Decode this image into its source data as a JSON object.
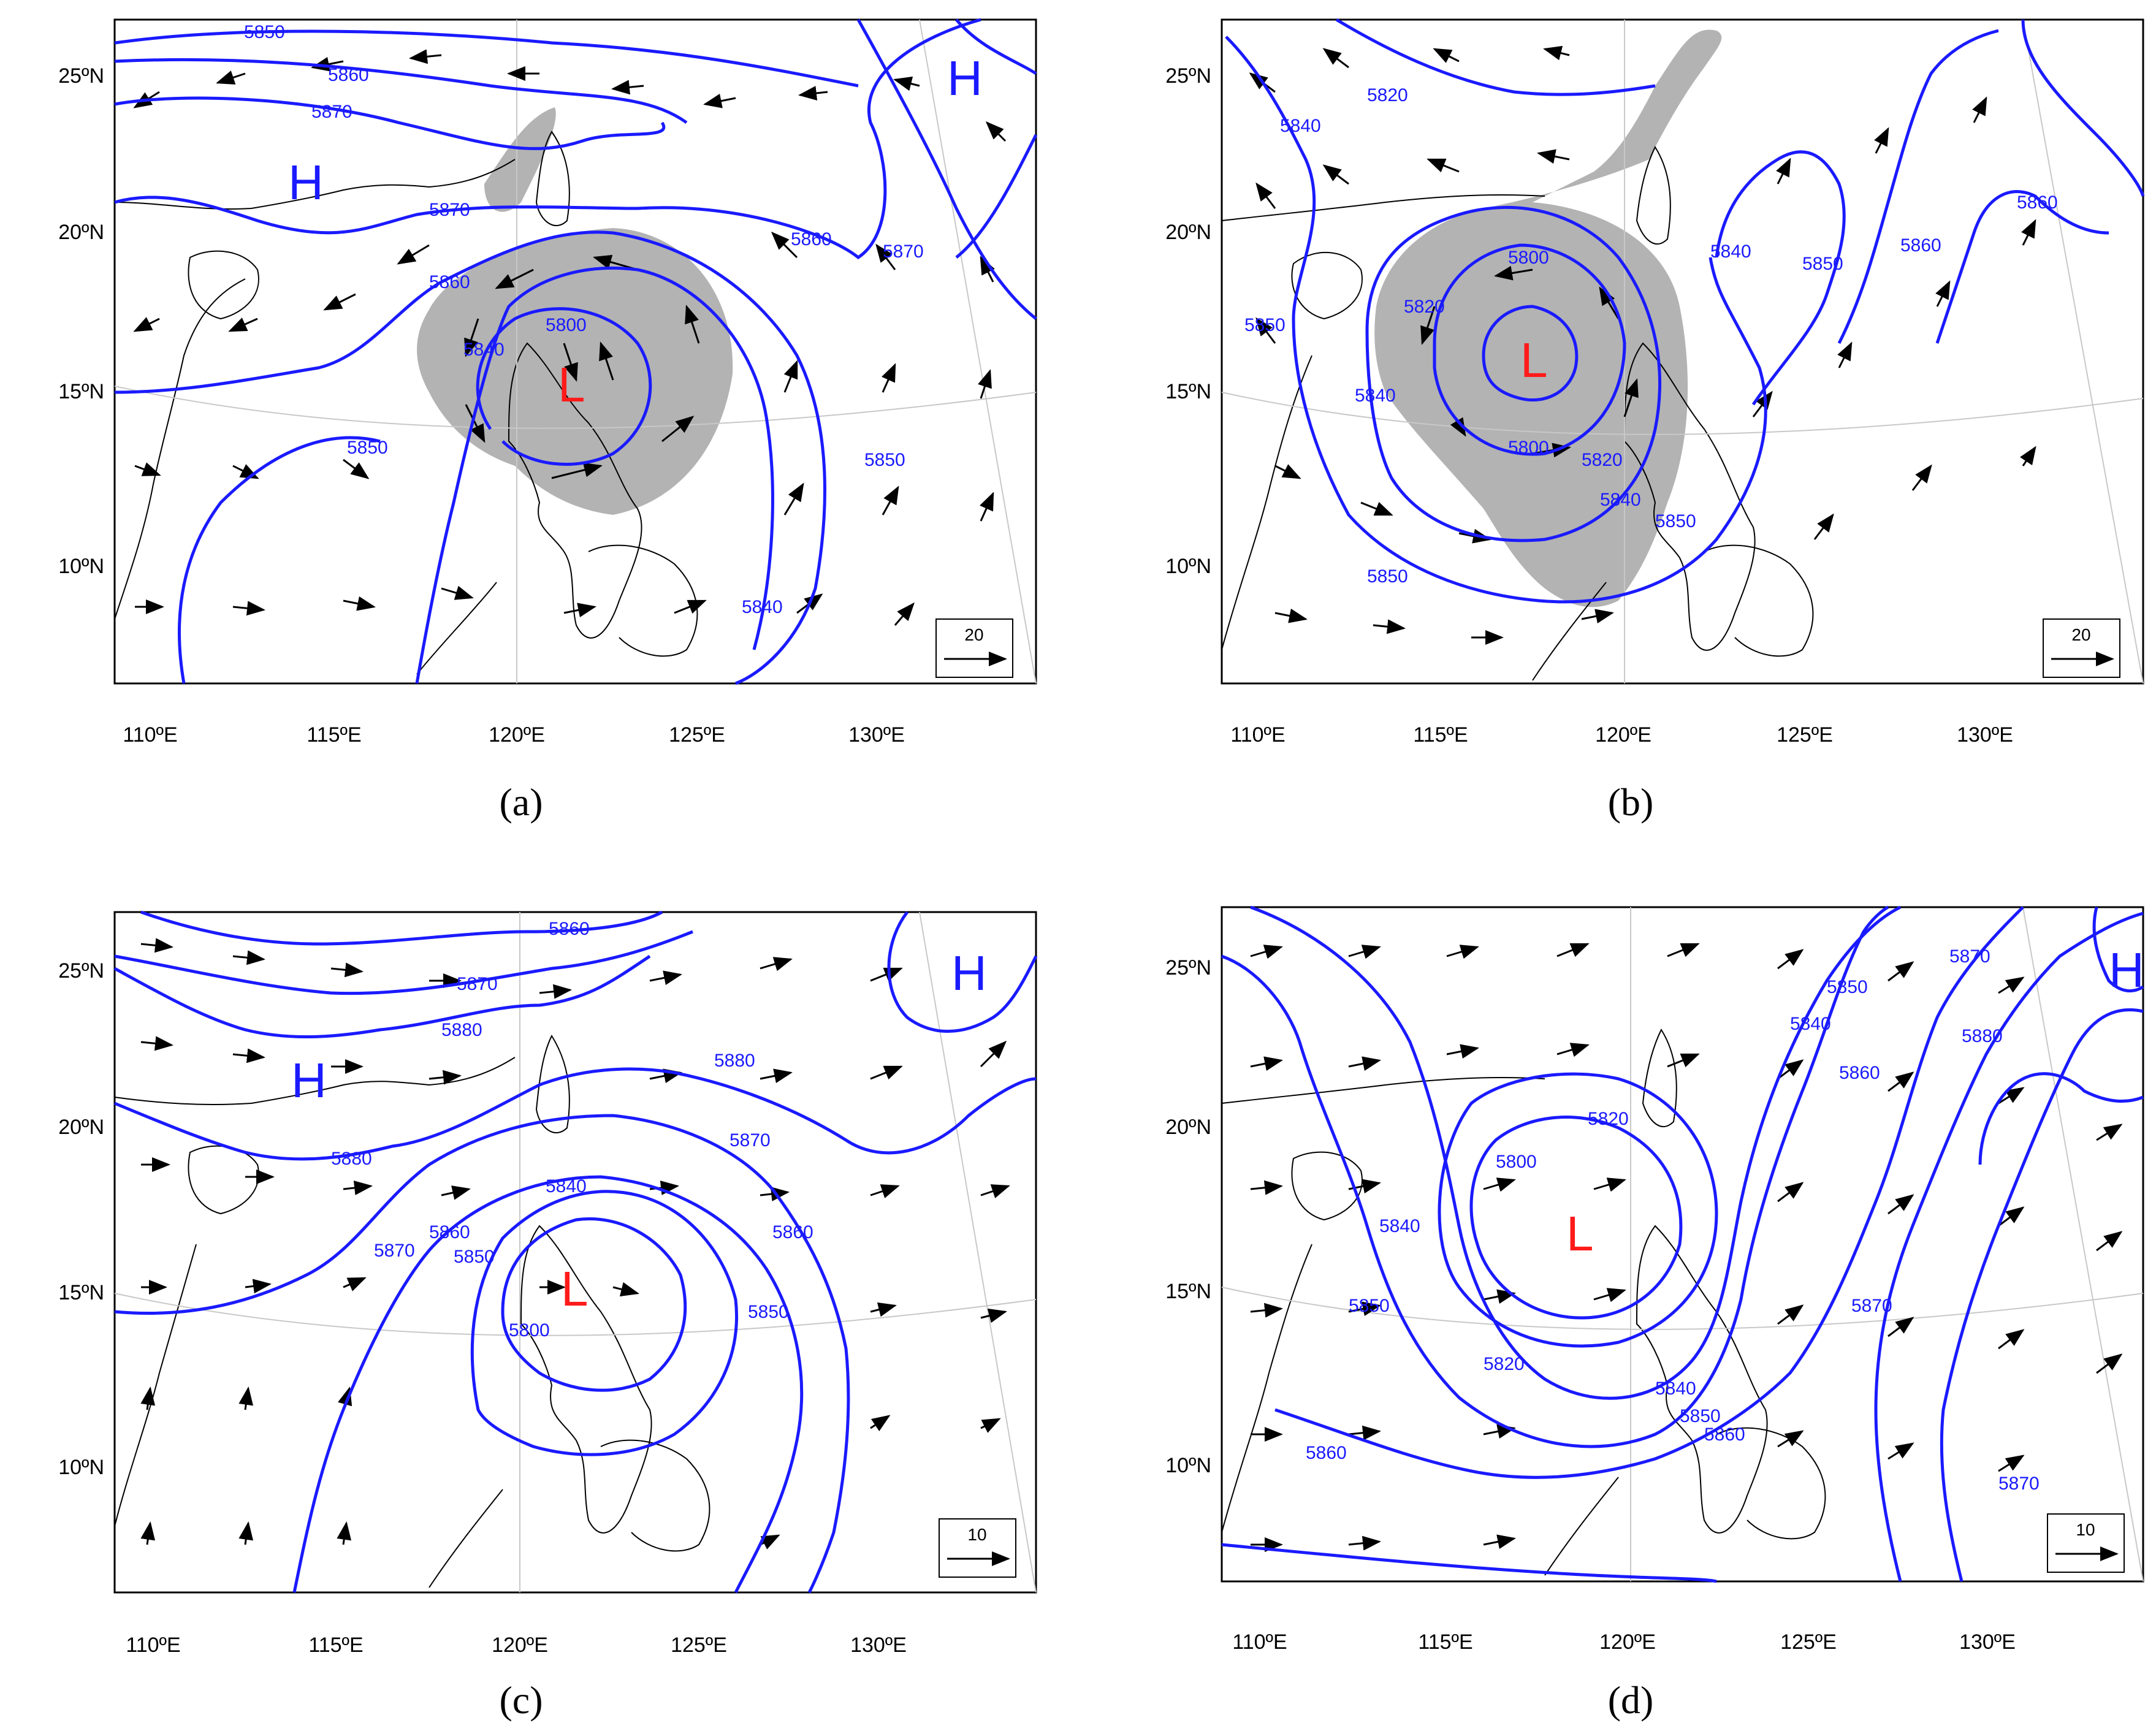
{
  "figure": {
    "lat_ticks": [
      "25ºN",
      "20ºN",
      "15ºN",
      "10ºN"
    ],
    "lon_ticks": [
      "110ºE",
      "115ºE",
      "120ºE",
      "125ºE",
      "130ºE"
    ],
    "colors": {
      "contour": "#1a1aff",
      "low": "#ff1a1a",
      "high": "#1a1aff",
      "shade": "#b3b3b3",
      "arrow": "#000000",
      "coast": "#000000"
    }
  },
  "panels": [
    {
      "id": "a",
      "label": "(a)",
      "ref_vector": "20",
      "centers": [
        {
          "type": "L",
          "lon": 121.8,
          "lat": 15.4
        },
        {
          "type": "H",
          "lon": 113.8,
          "lat": 21.5
        },
        {
          "type": "H",
          "lon": 132.5,
          "lat": 24.8
        }
      ],
      "contour_labels": [
        "5850",
        "5860",
        "5870",
        "5870",
        "5860",
        "5850",
        "5840",
        "5800",
        "5860",
        "5870",
        "5850",
        "5840"
      ]
    },
    {
      "id": "b",
      "label": "(b)",
      "ref_vector": "20",
      "centers": [
        {
          "type": "L",
          "lon": 118.0,
          "lat": 15.9
        }
      ],
      "contour_labels": [
        "5820",
        "5840",
        "5800",
        "5820",
        "5840",
        "5850",
        "5800",
        "5820",
        "5840",
        "5850",
        "5850",
        "5840",
        "5850",
        "5860",
        "5860"
      ]
    },
    {
      "id": "c",
      "label": "(c)",
      "ref_vector": "10",
      "centers": [
        {
          "type": "L",
          "lon": 121.8,
          "lat": 15.2
        },
        {
          "type": "H",
          "lon": 114.0,
          "lat": 21.3
        },
        {
          "type": "H",
          "lon": 132.6,
          "lat": 24.7
        }
      ],
      "contour_labels": [
        "5860",
        "5870",
        "5880",
        "5880",
        "5870",
        "5860",
        "5850",
        "5840",
        "5880",
        "5870",
        "5860",
        "5850",
        "5800"
      ]
    },
    {
      "id": "d",
      "label": "(d)",
      "ref_vector": "10",
      "centers": [
        {
          "type": "L",
          "lon": 118.7,
          "lat": 16.1
        },
        {
          "type": "H",
          "lon": 134.4,
          "lat": 24.8
        }
      ],
      "contour_labels": [
        "5820",
        "5800",
        "5840",
        "5850",
        "5820",
        "5840",
        "5850",
        "5860",
        "5860",
        "5840",
        "5850",
        "5860",
        "5870",
        "5880",
        "5870",
        "5870"
      ]
    }
  ]
}
